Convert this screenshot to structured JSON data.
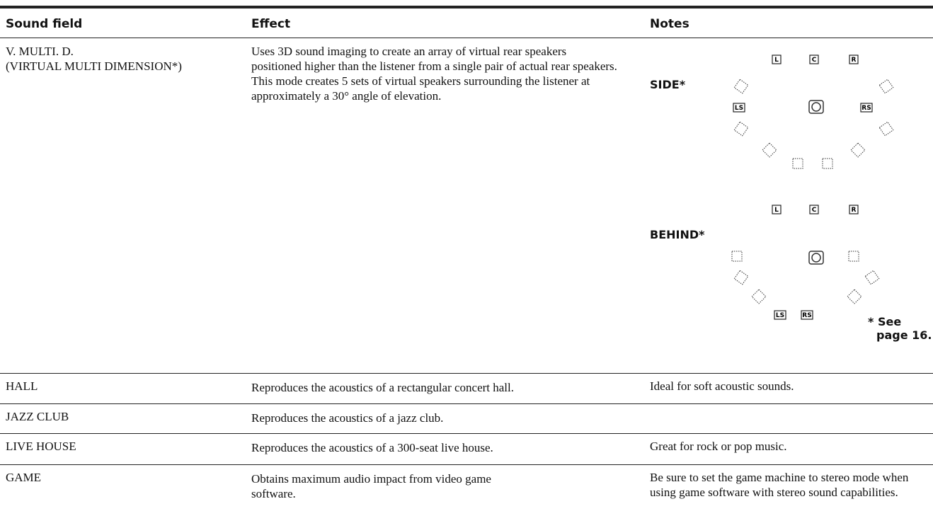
{
  "table": {
    "headers": [
      "Sound field",
      "Effect",
      "Notes"
    ],
    "rows": [
      {
        "sound_field": [
          "V. MULTI. D.",
          "(VIRTUAL MULTI DIMENSION*)"
        ],
        "effect": "Uses 3D sound imaging to create an array of virtual rear speakers positioned higher than the listener from a single pair of actual rear speakers. This mode creates 5 sets of virtual speakers surrounding the listener at approximately a 30° angle of elevation."
      },
      {
        "sound_field": [
          "HALL"
        ],
        "effect": "Reproduces the acoustics of a rectangular concert hall.",
        "notes": "Ideal for soft acoustic sounds."
      },
      {
        "sound_field": [
          "JAZZ CLUB"
        ],
        "effect": "Reproduces the acoustics of a jazz club."
      },
      {
        "sound_field": [
          "LIVE HOUSE"
        ],
        "effect": "Reproduces the acoustics of a 300-seat live house.",
        "notes": "Great for rock or pop music."
      },
      {
        "sound_field": [
          "GAME"
        ],
        "effect": "Obtains maximum audio impact from video game software.",
        "notes": "Be sure to set the game machine to stereo mode when using game software with stereo sound capabilities."
      }
    ]
  },
  "diagrams": [
    {
      "label": "SIDE*",
      "speakers": [
        "L",
        "C",
        "R",
        "LS",
        "RS"
      ]
    },
    {
      "label": "BEHIND*",
      "speakers": [
        "L",
        "C",
        "R",
        "LS",
        "RS"
      ]
    }
  ],
  "footnote": [
    "* See",
    "page 16."
  ]
}
